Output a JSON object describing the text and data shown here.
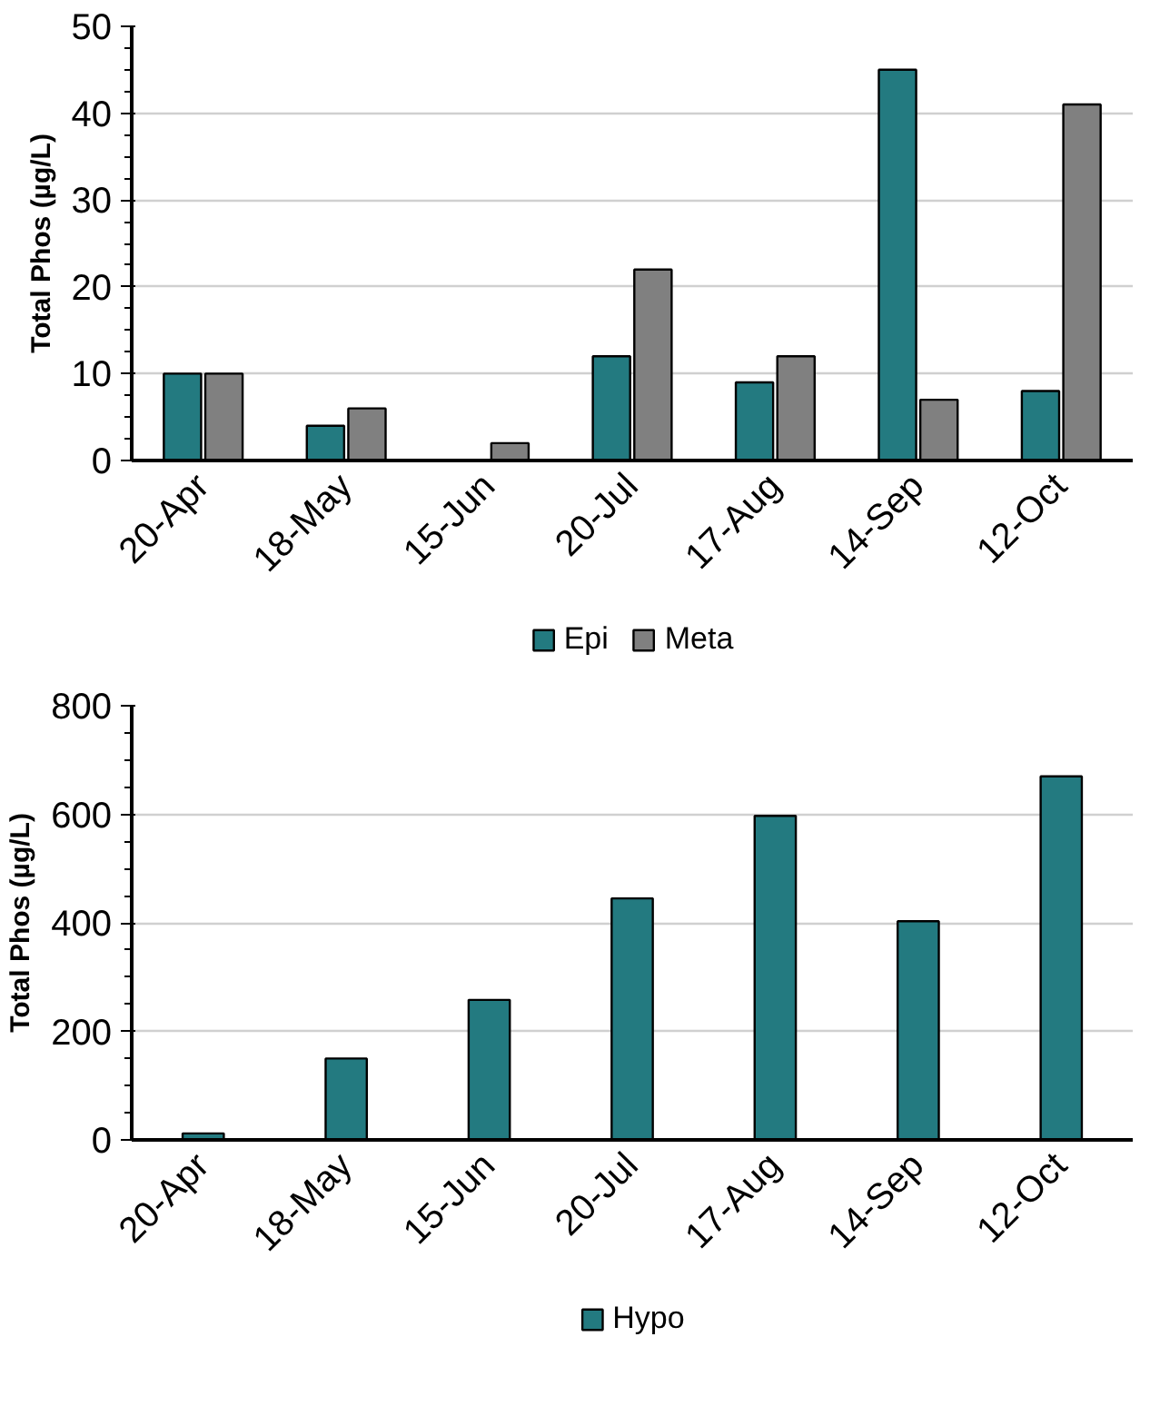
{
  "chart_data": [
    {
      "type": "bar",
      "ylabel": "Total Phos (µg/L)",
      "categories": [
        "20-Apr",
        "18-May",
        "15-Jun",
        "20-Jul",
        "17-Aug",
        "14-Sep",
        "12-Oct"
      ],
      "ylim": [
        0,
        50
      ],
      "yticks": [
        0,
        10,
        20,
        30,
        40,
        50
      ],
      "grid": "y",
      "legend": "bottom",
      "series": [
        {
          "name": "Epi",
          "color": "#237a80",
          "values": [
            10,
            4,
            null,
            12,
            9,
            45,
            8
          ]
        },
        {
          "name": "Meta",
          "color": "#808080",
          "values": [
            10,
            6,
            2,
            22,
            12,
            7,
            41
          ]
        }
      ]
    },
    {
      "type": "bar",
      "ylabel": "Total Phos (µg/L)",
      "categories": [
        "20-Apr",
        "18-May",
        "15-Jun",
        "20-Jul",
        "17-Aug",
        "14-Sep",
        "12-Oct"
      ],
      "ylim": [
        0,
        800
      ],
      "yticks": [
        0,
        200,
        400,
        600,
        800
      ],
      "grid": "y",
      "legend": "bottom",
      "series": [
        {
          "name": "Hypo",
          "color": "#237a80",
          "values": [
            12,
            150,
            258,
            445,
            597,
            403,
            670
          ]
        }
      ]
    }
  ]
}
